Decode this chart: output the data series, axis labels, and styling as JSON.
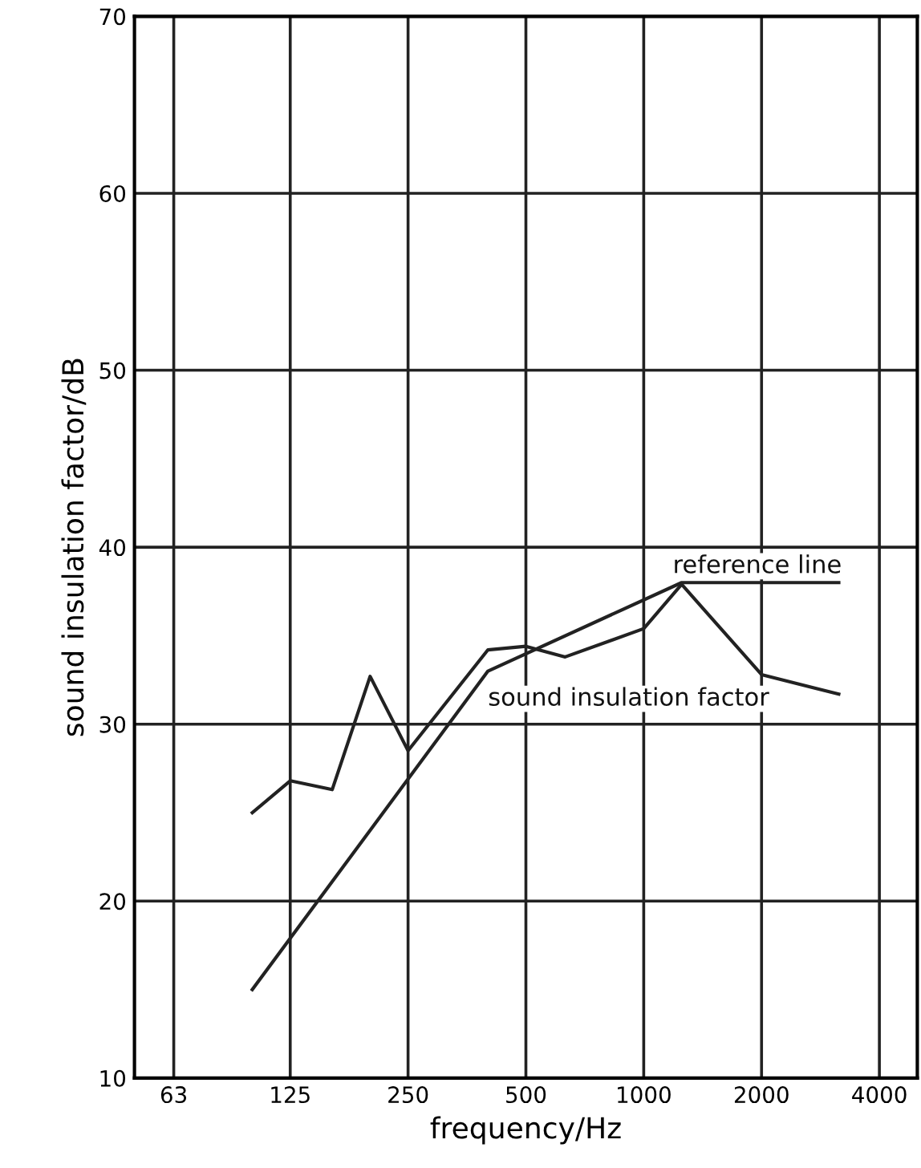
{
  "chart_data": {
    "type": "line",
    "xlabel": "frequency/Hz",
    "ylabel": "sound insulation factor/dB",
    "log": "x",
    "xlim": [
      50,
      5000
    ],
    "xticks": [
      63,
      125,
      250,
      500,
      1000,
      2000,
      4000
    ],
    "ylim": [
      10,
      70
    ],
    "yticks": [
      10,
      20,
      30,
      40,
      50,
      60,
      70
    ],
    "grid": true,
    "marker": "none",
    "line_style": "solid",
    "series": [
      {
        "name": "sound insulation factor",
        "color": "#222222",
        "x": [
          100,
          125,
          160,
          200,
          250,
          400,
          500,
          630,
          1000,
          1250,
          2000,
          3150
        ],
        "values": [
          25.0,
          26.8,
          26.3,
          32.7,
          28.5,
          34.2,
          34.4,
          33.8,
          35.4,
          37.9,
          32.8,
          31.7
        ]
      },
      {
        "name": "reference line",
        "color": "#222222",
        "x": [
          100,
          400,
          1250,
          3150
        ],
        "values": [
          15,
          33,
          38,
          38
        ]
      }
    ]
  }
}
